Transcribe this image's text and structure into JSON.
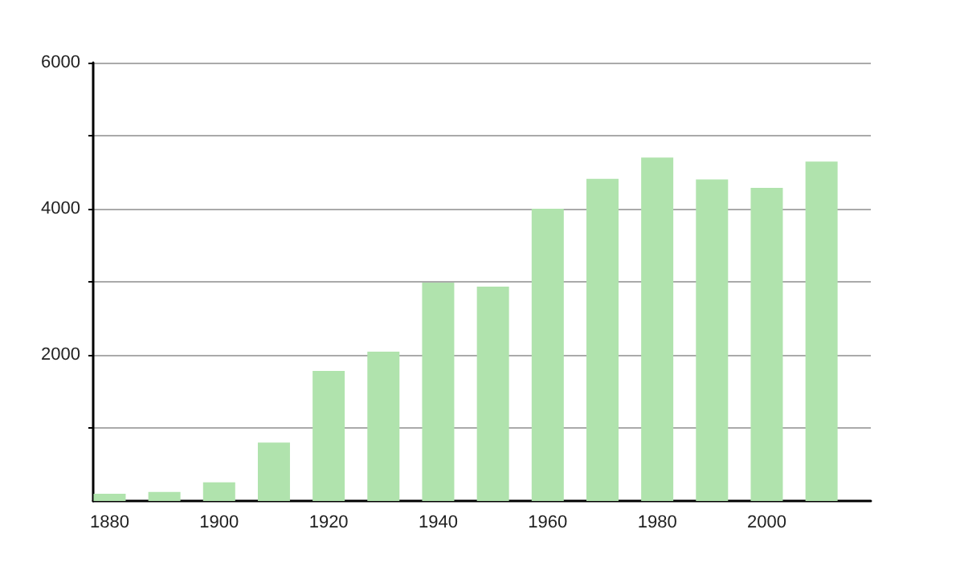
{
  "chart_data": {
    "type": "bar",
    "x": [
      1880,
      1890,
      1900,
      1910,
      1920,
      1930,
      1940,
      1950,
      1960,
      1970,
      1980,
      1990,
      2000,
      2010
    ],
    "values": [
      100,
      125,
      255,
      800,
      1780,
      2045,
      2990,
      2935,
      4000,
      4410,
      4700,
      4400,
      4285,
      4645
    ],
    "color": "#b0e3ad",
    "xlim": [
      1877,
      2019
    ],
    "xticks": [
      1880,
      1900,
      1920,
      1940,
      1960,
      1980,
      2000
    ],
    "ylim": [
      0,
      6000
    ],
    "yticks": [
      {
        "value": 1000,
        "label": null
      },
      2000,
      {
        "value": 3000,
        "label": null
      },
      4000,
      {
        "value": 5000,
        "label": null
      },
      6000
    ],
    "grid": "y"
  }
}
